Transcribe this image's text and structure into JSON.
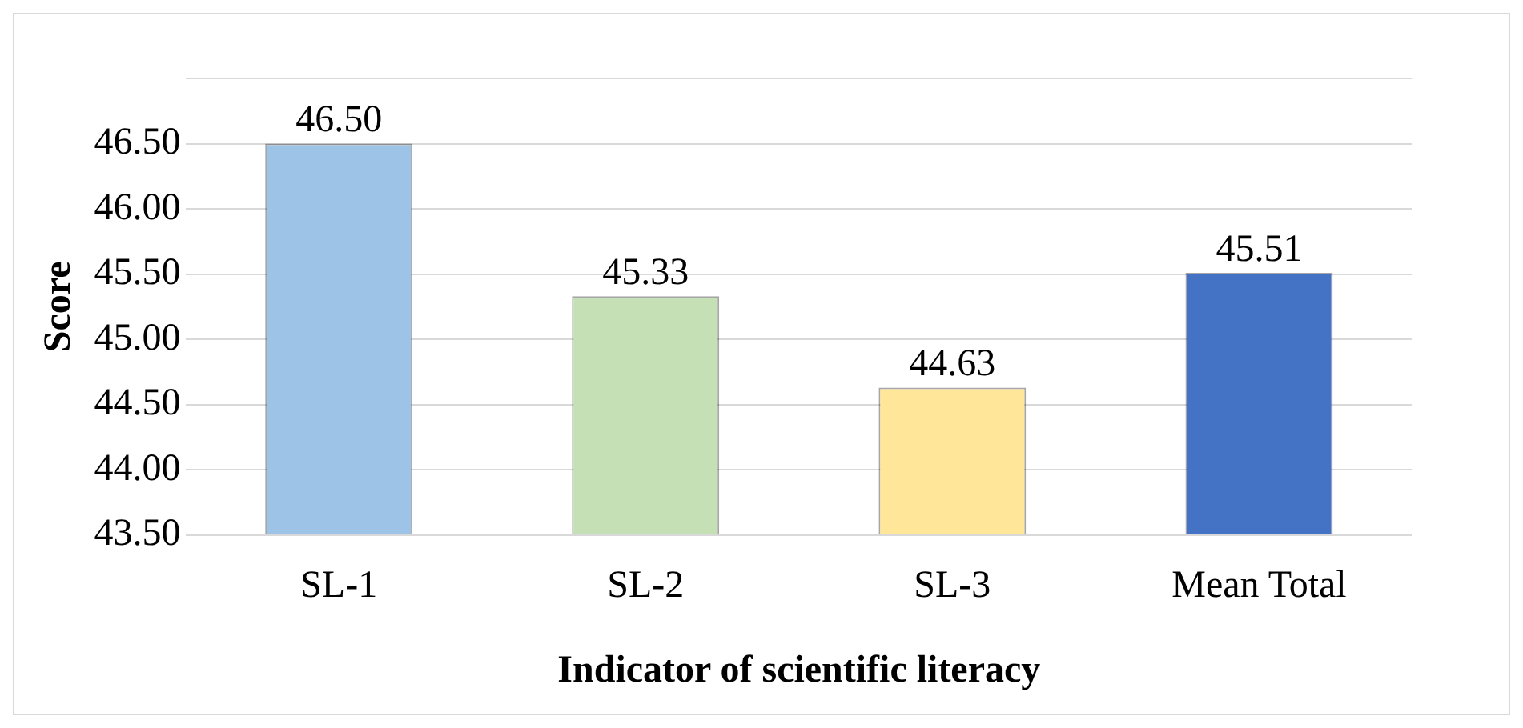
{
  "chart_data": {
    "type": "bar",
    "xlabel": "Indicator of scientific literacy",
    "ylabel": "Score",
    "categories": [
      "SL-1",
      "SL-2",
      "SL-3",
      "Mean Total"
    ],
    "values": [
      46.5,
      45.33,
      44.63,
      45.51
    ],
    "colors": [
      "#9dc3e6",
      "#c5e0b4",
      "#ffe699",
      "#4472c4"
    ],
    "value_labels": [
      "46.50",
      "45.33",
      "44.63",
      "45.51"
    ],
    "ylim": [
      43.5,
      47
    ],
    "yticks": [
      {
        "value": 43.5,
        "label": "43.50"
      },
      {
        "value": 44,
        "label": "44.00"
      },
      {
        "value": 44.5,
        "label": "44.50"
      },
      {
        "value": 45,
        "label": "45.00"
      },
      {
        "value": 45.5,
        "label": "45.50"
      },
      {
        "value": 46,
        "label": "46.00"
      },
      {
        "value": 46.5,
        "label": "46.50"
      },
      {
        "value": 47,
        "label": null
      }
    ],
    "grid": true,
    "legend": false
  }
}
